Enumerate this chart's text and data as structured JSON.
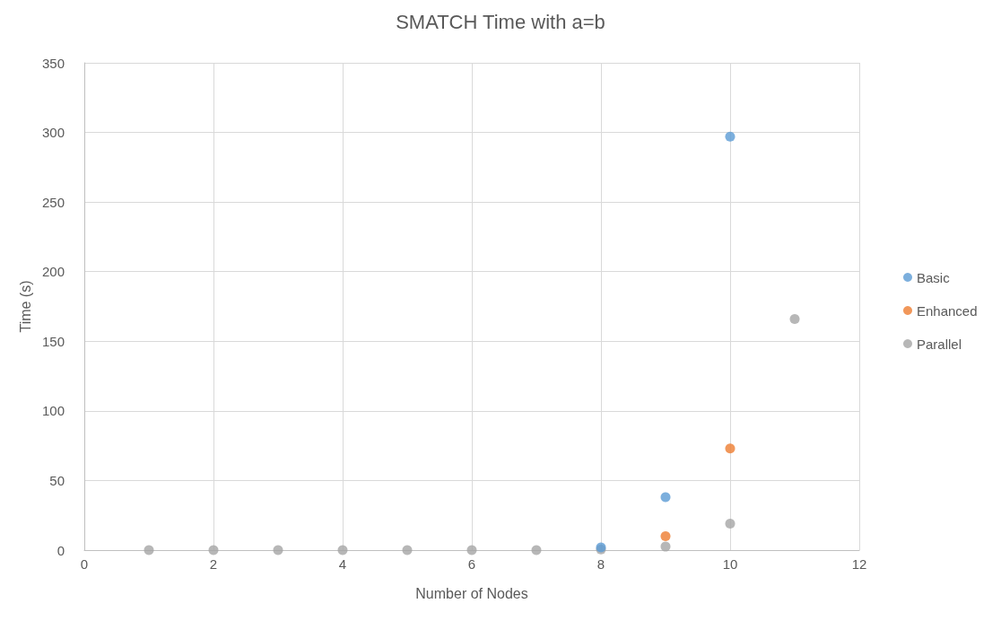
{
  "chart_data": {
    "type": "scatter",
    "title": "SMATCH Time with a=b",
    "xlabel": "Number of Nodes",
    "ylabel": "Time (s)",
    "xlim": [
      0,
      12
    ],
    "xticks": [
      0,
      2,
      4,
      6,
      8,
      10,
      12
    ],
    "ylim": [
      0,
      350
    ],
    "yticks": [
      0,
      50,
      100,
      150,
      200,
      250,
      300,
      350
    ],
    "grid": true,
    "legend": "right",
    "marker": "circle",
    "series": [
      {
        "name": "Basic",
        "color": "#5b9bd5",
        "x": [
          8,
          9,
          10
        ],
        "values": [
          2,
          38,
          297
        ]
      },
      {
        "name": "Enhanced",
        "color": "#ed7d31",
        "x": [
          9,
          10
        ],
        "values": [
          10,
          73
        ]
      },
      {
        "name": "Parallel",
        "color": "#a5a5a5",
        "x": [
          1,
          2,
          3,
          4,
          5,
          6,
          7,
          8,
          9,
          10,
          11
        ],
        "values": [
          0,
          0,
          0,
          0,
          0,
          0,
          0,
          0.5,
          2.5,
          19,
          166
        ]
      }
    ]
  }
}
